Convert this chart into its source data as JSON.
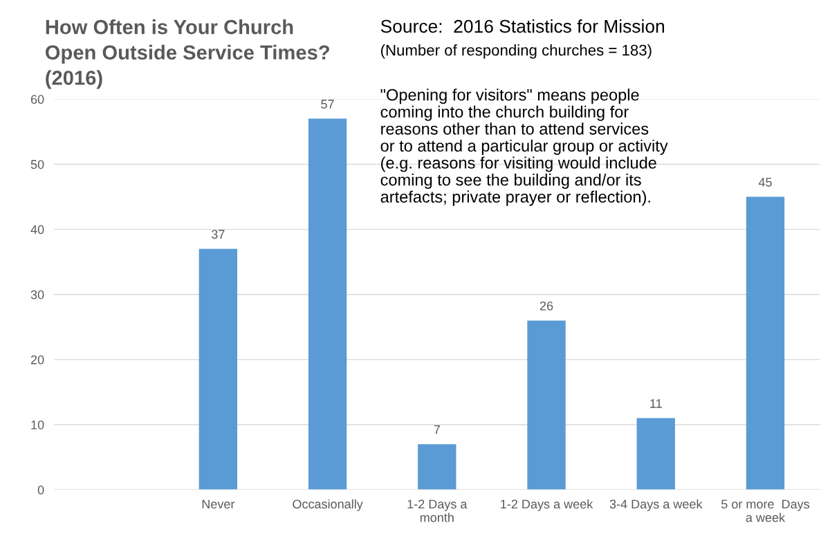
{
  "chart_data": {
    "type": "bar",
    "title": "How Often is Your Church\nOpen Outside Service Times?\n(2016)",
    "categories": [
      null,
      "Never",
      "Occasionally",
      "1-2 Days a\nmonth",
      "1-2 Days a week",
      "3-4 Days a week",
      "5 or more  Days\na week"
    ],
    "values": [
      null,
      37,
      57,
      7,
      26,
      11,
      45
    ],
    "color": "#5b9bd5",
    "ylim": [
      0,
      60
    ],
    "yticks": [
      0,
      10,
      20,
      30,
      40,
      50,
      60
    ],
    "grid": "y",
    "data_labels": true,
    "annotations": [
      "Source:  2016 Statistics for Mission",
      "(Number of responding churches = 183)",
      "\"Opening for visitors\" means people\ncoming into the church building for\nreasons other than to attend services\nor to attend a particular group or activity\n(e.g. reasons for visiting would include\ncoming to see the building and/or its\nartefacts; private prayer or reflection)."
    ]
  }
}
